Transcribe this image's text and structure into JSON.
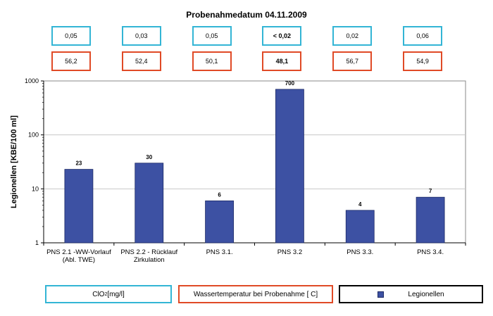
{
  "chart_data": {
    "type": "bar",
    "title": "Probenahmedatum 04.11.2009",
    "ylabel": "Legionellen [KBE/100 ml]",
    "yscale": "log",
    "ylim": [
      1,
      1000
    ],
    "yticks": [
      "1",
      "10",
      "100",
      "1000"
    ],
    "grid": true,
    "categories": [
      "PNS 2.1 -WW-Vorlauf (Abl. TWE)",
      "PNS 2.2 - Rücklauf Zirkulation",
      "PNS  3.1.",
      "PNS 3.2",
      "PNS 3.3.",
      "PNS 3.4."
    ],
    "category_lines": [
      [
        "PNS 2.1 -WW-Vorlauf",
        "(Abl. TWE)"
      ],
      [
        "PNS 2.2 - Rücklauf",
        "Zirkulation"
      ],
      [
        "PNS  3.1."
      ],
      [
        "PNS 3.2"
      ],
      [
        "PNS 3.3."
      ],
      [
        "PNS 3.4."
      ]
    ],
    "series": [
      {
        "name": "Legionellen",
        "values": [
          23,
          30,
          6,
          700,
          4,
          7
        ],
        "color": "#3d51a3"
      }
    ],
    "data_labels": [
      "23",
      "30",
      "6",
      "700",
      "4",
      "7"
    ],
    "clo2_values": [
      "0,05",
      "0,03",
      "0,05",
      "< 0,02",
      "0,02",
      "0,06"
    ],
    "temperature_values": [
      "56,2",
      "52,4",
      "50,1",
      "48,1",
      "56,7",
      "54,9"
    ],
    "highlight_index": 3,
    "legend": {
      "clo2_prefix": "ClO",
      "clo2_sub": "2",
      "clo2_suffix": " [mg/l]",
      "temperature": "Wassertemperatur bei Probenahme [ C]",
      "bars": "Legionellen"
    },
    "colors": {
      "clo2_border": "#33b5d5",
      "temperature_border": "#e04a26",
      "bar": "#3d51a3",
      "plot_bg": "#ffffff",
      "grid": "#c8c8c8"
    }
  }
}
